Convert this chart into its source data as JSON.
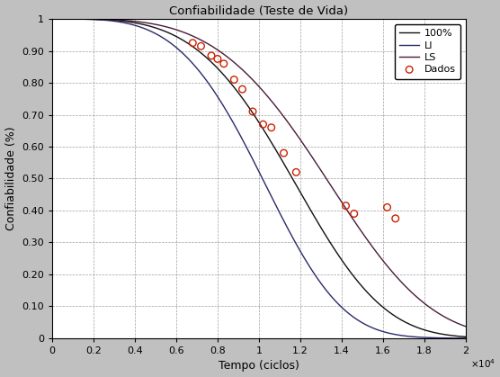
{
  "title": "Confiabilidade (Teste de Vida)",
  "xlabel": "Tempo (ciclos)",
  "ylabel": "Confiabilidade (%)",
  "xlim": [
    0,
    20000
  ],
  "ylim": [
    0,
    1
  ],
  "xticks": [
    0,
    2000,
    4000,
    6000,
    8000,
    10000,
    12000,
    14000,
    16000,
    18000,
    20000
  ],
  "yticks": [
    0,
    0.1,
    0.2,
    0.3,
    0.4,
    0.5,
    0.6,
    0.7,
    0.8,
    0.9,
    1.0
  ],
  "background_color": "#c0c0c0",
  "plot_bg_color": "#ffffff",
  "grid_color": "#888888",
  "weibull_100_eta": 12800,
  "weibull_100_beta": 3.8,
  "weibull_LI_eta": 11200,
  "weibull_LI_beta": 3.8,
  "weibull_LS_eta": 14600,
  "weibull_LS_beta": 3.8,
  "line_100_color": "#111111",
  "line_LI_color": "#2a2a6a",
  "line_LS_color": "#4a1a3a",
  "dados_color": "#cc2200",
  "dados_x": [
    6800,
    7200,
    7700,
    8000,
    8300,
    8800,
    9200,
    9700,
    10200,
    10600,
    11200,
    11800,
    14200,
    14600,
    16200,
    16600
  ],
  "dados_y": [
    0.925,
    0.915,
    0.885,
    0.875,
    0.86,
    0.81,
    0.78,
    0.71,
    0.67,
    0.66,
    0.58,
    0.52,
    0.415,
    0.39,
    0.41,
    0.375
  ],
  "legend_labels": [
    "100%",
    "LI",
    "LS",
    "Dados"
  ],
  "figsize": [
    5.56,
    4.19
  ],
  "dpi": 100
}
